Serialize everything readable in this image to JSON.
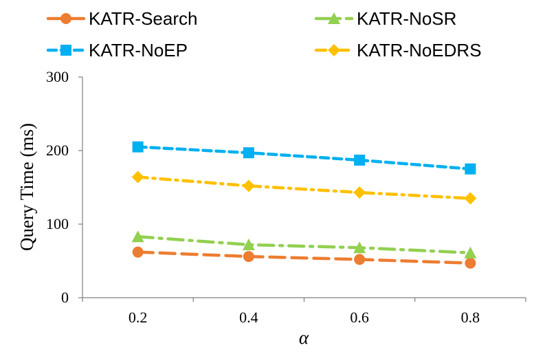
{
  "chart_data": {
    "type": "line",
    "title": "",
    "xlabel": "α",
    "ylabel": "Query Time (ms)",
    "x": [
      "0.2",
      "0.4",
      "0.6",
      "0.8"
    ],
    "ylim": [
      0,
      300
    ],
    "yticks": [
      "0",
      "100",
      "200",
      "300"
    ],
    "grid": false,
    "legend_position": "top",
    "series": [
      {
        "name": "KATR-Search",
        "values": [
          62,
          56,
          52,
          47
        ],
        "color": "#ED7D31",
        "marker": "circle",
        "dash": "long-dash"
      },
      {
        "name": "KATR-NoSR",
        "values": [
          83,
          72,
          68,
          61
        ],
        "color": "#92D050",
        "marker": "triangle",
        "dash": "long-dash-dot"
      },
      {
        "name": "KATR-NoEP",
        "values": [
          205,
          197,
          187,
          175
        ],
        "color": "#00B0F0",
        "marker": "square",
        "dash": "dash"
      },
      {
        "name": "KATR-NoEDRS",
        "values": [
          164,
          152,
          143,
          135
        ],
        "color": "#FFC000",
        "marker": "diamond",
        "dash": "dash-dot"
      }
    ]
  }
}
